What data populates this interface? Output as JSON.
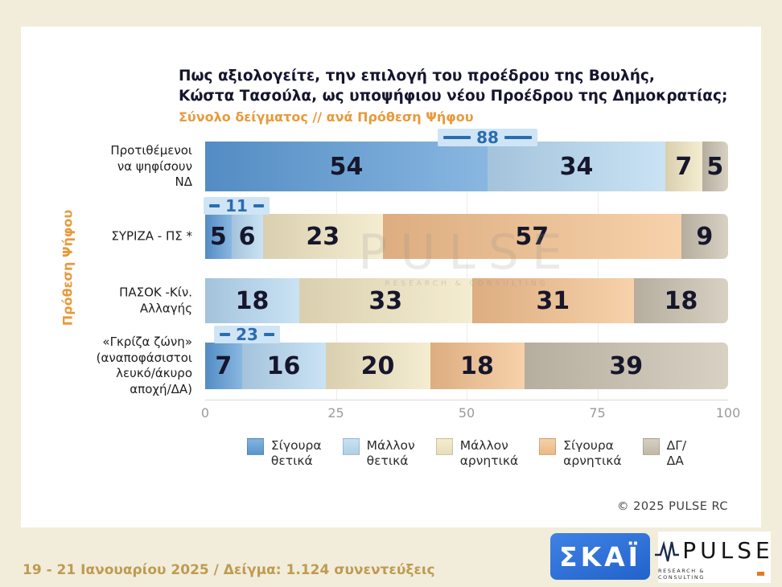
{
  "colors": {
    "background": "#f1edda",
    "panel": "#ffffff",
    "accent_orange": "#e79a3b",
    "annotation_blue": "#2a6db0",
    "annotation_background": "#cfe4f5",
    "title_text": "#15152e",
    "axis_gray": "#9b9b9b",
    "date_text": "#c09a52",
    "skai_blue": "#2e6fd6",
    "pulse_accent": "#e87722"
  },
  "chart_data": {
    "type": "bar",
    "stacked": true,
    "orientation": "horizontal",
    "title_line1": "Πως αξιολογείτε, την επιλογή του προέδρου της Βουλής,",
    "title_line2": "Κώστα Τασούλα, ως υποψήφιου νέου Προέδρου της Δημοκρατίας;",
    "subtitle": "Σύνολο δείγματος // ανά Πρόθεση Ψήφου",
    "ylabel": "Πρόθεση Ψήφου",
    "xlim": [
      0,
      100
    ],
    "x_ticks": [
      0,
      25,
      50,
      75,
      100
    ],
    "grid": "light vertical lines at 25/50/75",
    "legend_position": "bottom",
    "legend": [
      {
        "key": "strong_pos",
        "label": "Σίγουρα θετικά",
        "label_lines": [
          "Σίγουρα",
          "θετικά"
        ],
        "color": "#5b9bd5"
      },
      {
        "key": "lean_pos",
        "label": "Μάλλον θετικά",
        "label_lines": [
          "Μάλλον",
          "θετικά"
        ],
        "color": "#b5d8f0"
      },
      {
        "key": "lean_neg",
        "label": "Μάλλον αρνητικά",
        "label_lines": [
          "Μάλλον",
          "αρνητικά"
        ],
        "color": "#f1e6bf"
      },
      {
        "key": "strong_neg",
        "label": "Σίγουρα αρνητικά",
        "label_lines": [
          "Σίγουρα",
          "αρνητικά"
        ],
        "color": "#f4c08a"
      },
      {
        "key": "dk",
        "label": "ΔΓ/ΔΑ",
        "label_lines": [
          "ΔΓ/",
          "ΔΑ"
        ],
        "color": "#c9c0ac"
      }
    ],
    "rows": [
      {
        "category": "Προτιθέμενοι να ψηφίσουν ΝΔ",
        "label_lines": [
          "Προτιθέμενοι",
          "να ψηφίσουν",
          "ΝΔ"
        ],
        "segments": [
          {
            "key": "strong_pos",
            "value": 54
          },
          {
            "key": "lean_pos",
            "value": 34
          },
          {
            "key": "lean_neg",
            "value": 7
          },
          {
            "key": "dk",
            "value": 5
          }
        ],
        "annotation": {
          "text": "88",
          "meaning": "total positive",
          "center_pct": 54,
          "dash": "long"
        }
      },
      {
        "category": "ΣΥΡΙΖΑ - ΠΣ *",
        "label_lines": [
          "ΣΥΡΙΖΑ - ΠΣ *"
        ],
        "segments": [
          {
            "key": "strong_pos",
            "value": 5
          },
          {
            "key": "lean_pos",
            "value": 6
          },
          {
            "key": "lean_neg",
            "value": 23
          },
          {
            "key": "strong_neg",
            "value": 57
          },
          {
            "key": "dk",
            "value": 9
          }
        ],
        "annotation": {
          "text": "11",
          "meaning": "total positive",
          "center_pct": 6,
          "dash": "short"
        }
      },
      {
        "category": "ΠΑΣΟΚ -Κίν. Αλλαγής",
        "label_lines": [
          "ΠΑΣΟΚ -Κίν.",
          "Αλλαγής"
        ],
        "segments": [
          {
            "key": "lean_pos",
            "value": 18
          },
          {
            "key": "lean_neg",
            "value": 33
          },
          {
            "key": "strong_neg",
            "value": 31
          },
          {
            "key": "dk",
            "value": 18
          }
        ],
        "annotation": null
      },
      {
        "category": "«Γκρίζα ζώνη» (αναποφάσιστοι λευκό/άκυρο αποχή/ΔΑ)",
        "label_lines": [
          "«Γκρίζα ζώνη»",
          "(αναποφάσιστοι",
          "λευκό/άκυρο",
          "αποχή/ΔΑ)"
        ],
        "segments": [
          {
            "key": "strong_pos",
            "value": 7
          },
          {
            "key": "lean_pos",
            "value": 16
          },
          {
            "key": "lean_neg",
            "value": 20
          },
          {
            "key": "strong_neg",
            "value": 18
          },
          {
            "key": "dk",
            "value": 39
          }
        ],
        "annotation": {
          "text": "23",
          "meaning": "total positive",
          "center_pct": 8,
          "dash": "short"
        }
      }
    ]
  },
  "watermark": {
    "line1": "PULSE",
    "line2": "RESEARCH & CONSULTING"
  },
  "footer": {
    "copyright": "© 2025 PULSE RC",
    "date_sample": "19 - 21 Ιανουαρίου 2025 / Δείγμα: 1.124 συνεντεύξεις"
  },
  "logos": {
    "skai": "ΣΚΑΪ",
    "pulse_text": "PULSE",
    "pulse_sub": "RESEARCH & CONSULTING"
  }
}
